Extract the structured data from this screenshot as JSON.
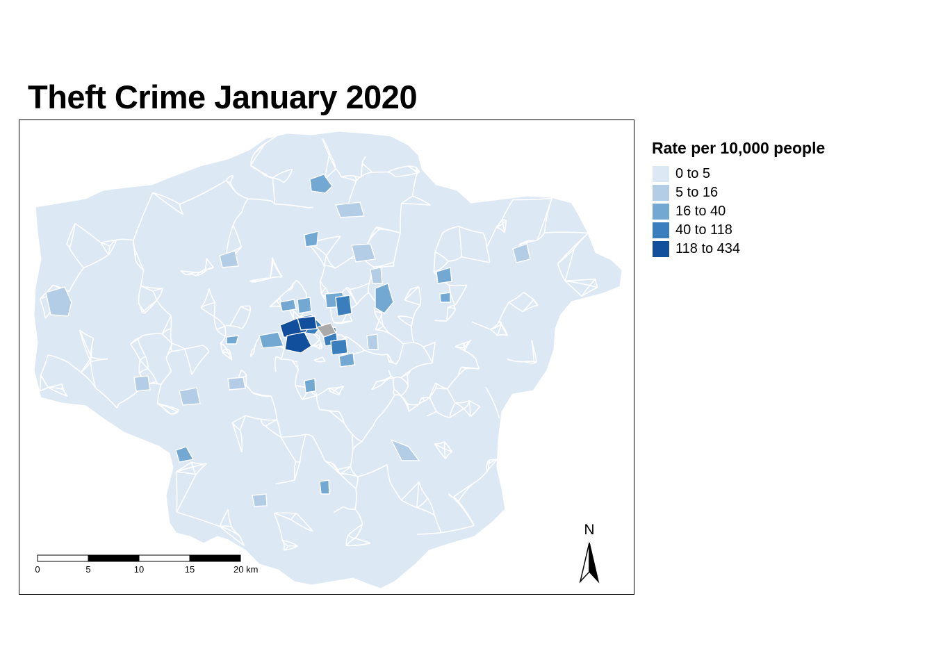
{
  "title": "Theft Crime January 2020",
  "legend": {
    "title": "Rate per 10,000 people",
    "items": [
      {
        "label": "0 to 5",
        "color": "#dde8f5"
      },
      {
        "label": "5 to 16",
        "color": "#b4cde6"
      },
      {
        "label": "16 to 40",
        "color": "#72a8d2"
      },
      {
        "label": "40 to 118",
        "color": "#3a7ebd"
      },
      {
        "label": "118 to 434",
        "color": "#114e9c"
      }
    ],
    "missing_color": "#aaaaaa"
  },
  "scale_bar": {
    "labels": [
      "0",
      "5",
      "10",
      "15",
      "20 km"
    ]
  },
  "north_arrow": {
    "label": "N"
  }
}
